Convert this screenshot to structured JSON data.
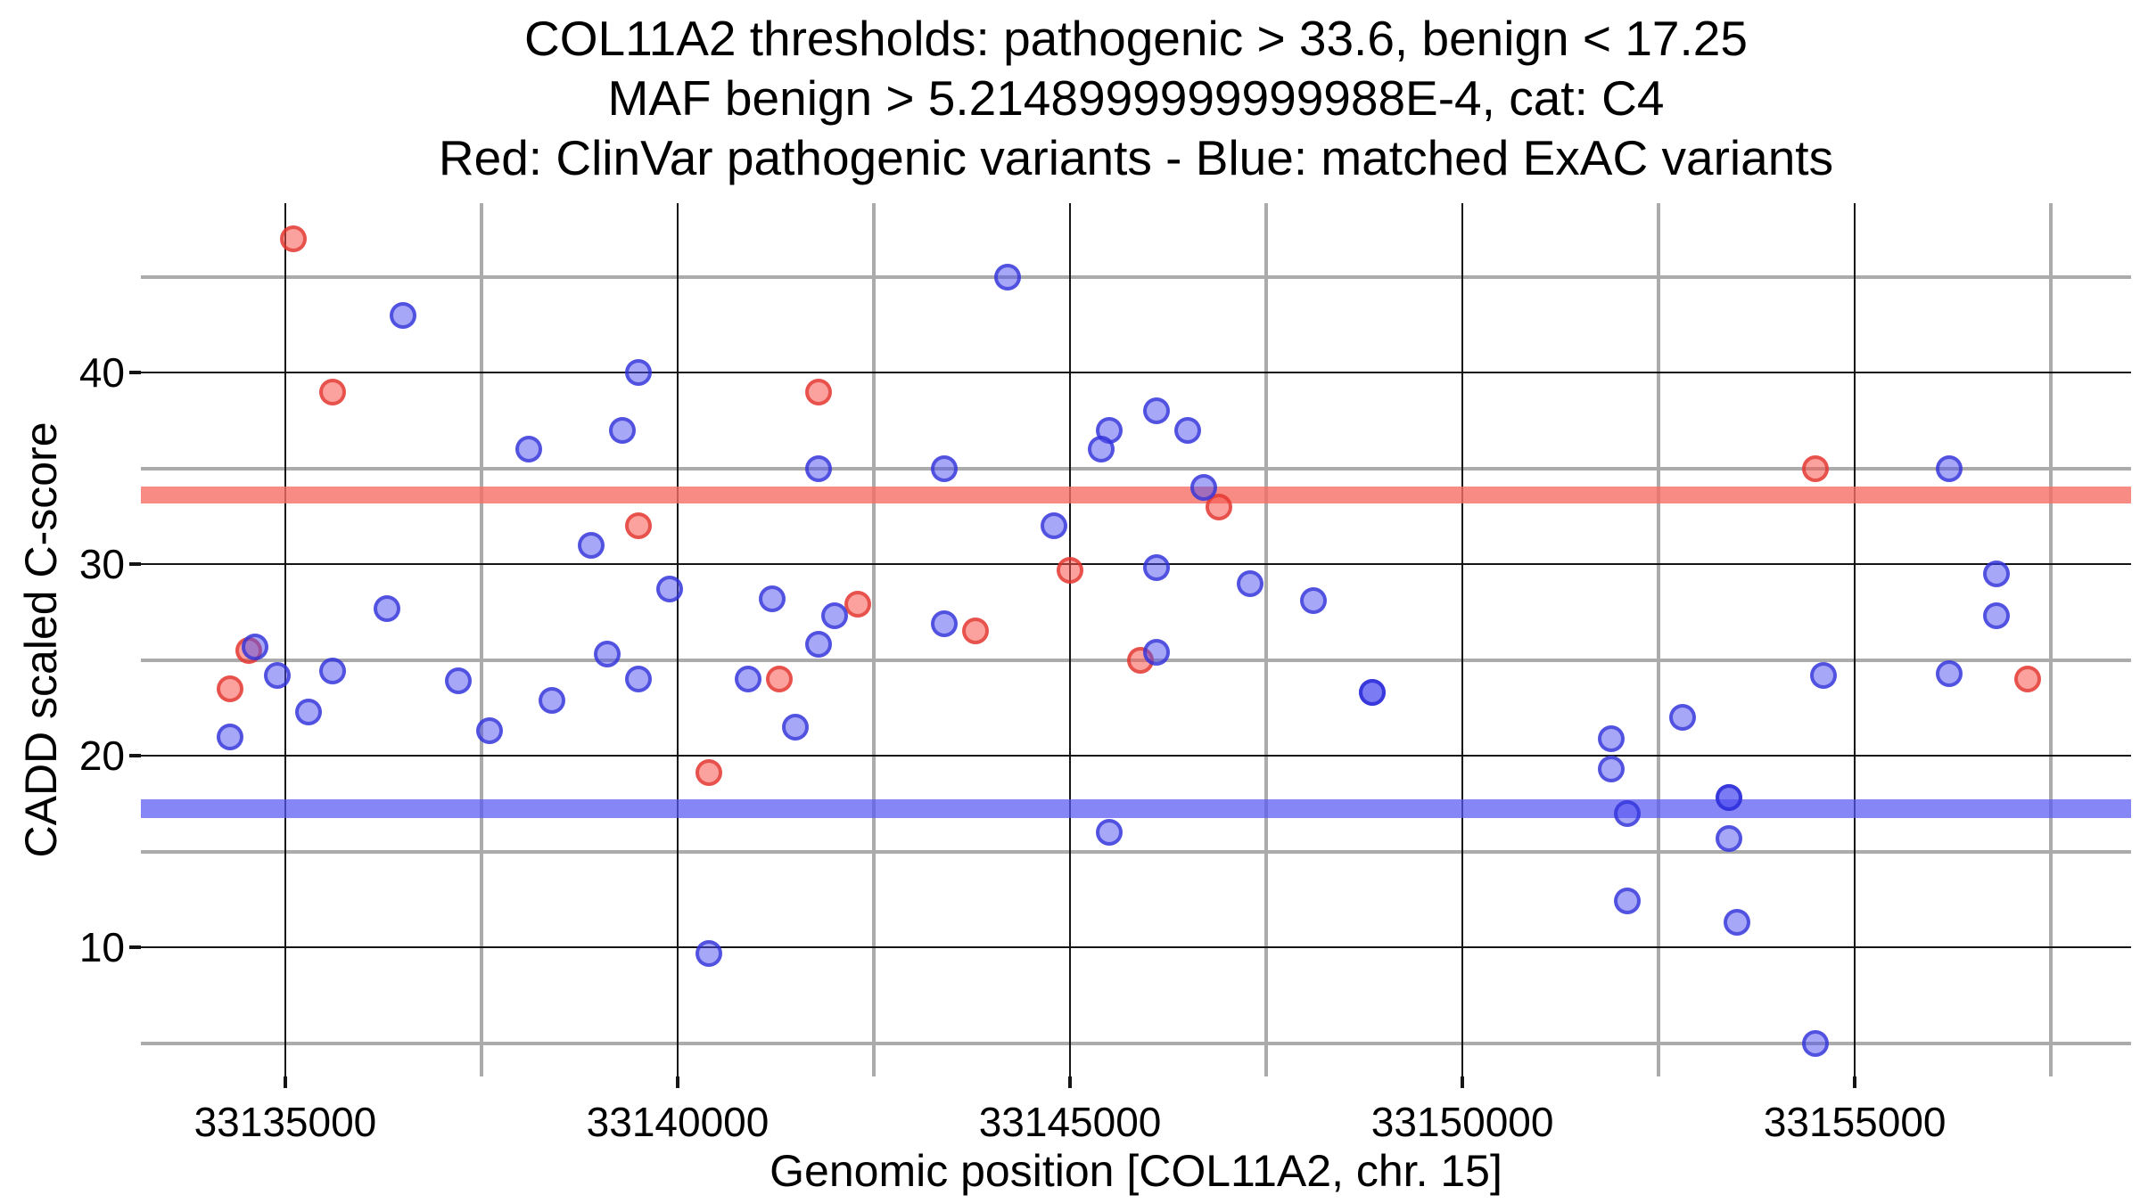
{
  "title": {
    "line1": "COL11A2 thresholds: pathogenic > 33.6, benign < 17.25",
    "line2": "MAF benign > 5.2148999999999988E-4, cat: C4",
    "line3": "Red: ClinVar pathogenic variants - Blue: matched ExAC variants"
  },
  "axes": {
    "x_label": "Genomic position [COL11A2, chr. 15]",
    "y_label": "CADD scaled C-score"
  },
  "chart_data": {
    "type": "scatter",
    "title": "COL11A2 thresholds: pathogenic > 33.6, benign < 17.25",
    "xlabel": "Genomic position [COL11A2, chr. 15]",
    "ylabel": "CADD scaled C-score",
    "x_domain": [
      33133160,
      33158520
    ],
    "y_domain": [
      3.26,
      48.84
    ],
    "grid": true,
    "x_major_ticks": [
      {
        "value": 33135000,
        "label": "33135000"
      },
      {
        "value": 33140000,
        "label": "33140000"
      },
      {
        "value": 33145000,
        "label": "33145000"
      },
      {
        "value": 33150000,
        "label": "33150000"
      },
      {
        "value": 33155000,
        "label": "33155000"
      }
    ],
    "x_minor_ticks": [
      33137500,
      33142500,
      33147500,
      33152500,
      33157500
    ],
    "y_major_ticks": [
      {
        "value": 10,
        "label": "10"
      },
      {
        "value": 20,
        "label": "20"
      },
      {
        "value": 30,
        "label": "30"
      },
      {
        "value": 40,
        "label": "40"
      }
    ],
    "y_minor_ticks": [
      5,
      15,
      25,
      35,
      45
    ],
    "bands": [
      {
        "name": "pathogenic-threshold-band",
        "y": 33.6,
        "thickness_px": 19,
        "color": "rgba(248,110,102,0.80)"
      },
      {
        "name": "benign-threshold-band",
        "y": 17.25,
        "thickness_px": 21,
        "color": "rgba(88,88,242,0.72)"
      }
    ],
    "thresholds": {
      "pathogenic": 33.6,
      "benign": 17.25,
      "maf_benign": "5.2148999999999988E-4",
      "category": "C4"
    },
    "series": [
      {
        "name": "ClinVar pathogenic variants",
        "color": "#e0302c",
        "class": "pt-red",
        "points": [
          [
            33135100,
            47.0
          ],
          [
            33135600,
            39.0
          ],
          [
            33141800,
            39.0
          ],
          [
            33139500,
            32.0
          ],
          [
            33146900,
            33.0
          ],
          [
            33145000,
            29.7
          ],
          [
            33142300,
            27.9
          ],
          [
            33143800,
            26.5
          ],
          [
            33145900,
            25.0
          ],
          [
            33134540,
            25.5
          ],
          [
            33134300,
            23.5
          ],
          [
            33141300,
            24.0
          ],
          [
            33140400,
            19.1
          ],
          [
            33154500,
            35.0
          ],
          [
            33157200,
            24.0
          ]
        ]
      },
      {
        "name": "matched ExAC variants",
        "color": "#2d2dd7",
        "class": "pt-blue",
        "points": [
          [
            33136500,
            43.0
          ],
          [
            33144200,
            45.0
          ],
          [
            33139500,
            40.0
          ],
          [
            33139300,
            37.0
          ],
          [
            33138100,
            36.0
          ],
          [
            33138900,
            31.0
          ],
          [
            33136300,
            27.7
          ],
          [
            33134610,
            25.7
          ],
          [
            33145500,
            37.0
          ],
          [
            33145400,
            36.0
          ],
          [
            33141800,
            35.0
          ],
          [
            33143400,
            35.0
          ],
          [
            33144800,
            32.0
          ],
          [
            33139900,
            28.7
          ],
          [
            33141200,
            28.2
          ],
          [
            33142000,
            27.3
          ],
          [
            33143400,
            26.9
          ],
          [
            33141800,
            25.8
          ],
          [
            33146100,
            38.0
          ],
          [
            33146500,
            37.0
          ],
          [
            33146700,
            34.0
          ],
          [
            33146100,
            29.8
          ],
          [
            33147300,
            29.0
          ],
          [
            33148100,
            28.1
          ],
          [
            33146100,
            25.4
          ],
          [
            33156200,
            35.0
          ],
          [
            33156800,
            29.5
          ],
          [
            33156800,
            27.3
          ],
          [
            33134900,
            24.2
          ],
          [
            33135300,
            22.3
          ],
          [
            33134300,
            21.0
          ],
          [
            33135600,
            24.4
          ],
          [
            33137200,
            23.9
          ],
          [
            33137600,
            21.3
          ],
          [
            33138400,
            22.9
          ],
          [
            33139100,
            25.3
          ],
          [
            33139500,
            24.0
          ],
          [
            33140900,
            24.0
          ],
          [
            33141500,
            21.5
          ],
          [
            33145500,
            16.0
          ],
          [
            33140400,
            9.7
          ],
          [
            33148850,
            23.3
          ],
          [
            33148850,
            23.3
          ],
          [
            33151900,
            20.9
          ],
          [
            33151900,
            19.3
          ],
          [
            33152100,
            17.0
          ],
          [
            33152100,
            12.4
          ],
          [
            33154600,
            24.2
          ],
          [
            33156200,
            24.3
          ],
          [
            33152800,
            22.0
          ],
          [
            33153400,
            17.8
          ],
          [
            33153400,
            17.8
          ],
          [
            33153400,
            15.7
          ],
          [
            33153500,
            11.3
          ],
          [
            33154500,
            5.0
          ]
        ]
      }
    ]
  }
}
